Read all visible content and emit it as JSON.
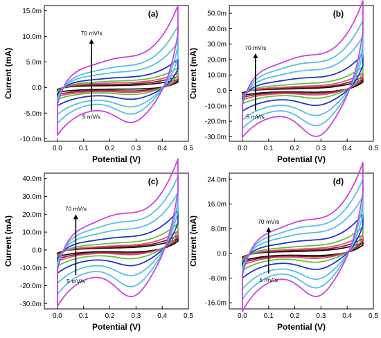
{
  "chart_data": [
    {
      "type": "line",
      "panel_label": "(a)",
      "xlabel": "Potential (V)",
      "ylabel": "Current (mA)",
      "xlim": [
        -0.05,
        0.5
      ],
      "ylim": [
        -10.5,
        16
      ],
      "xticks": [
        0.0,
        0.1,
        0.2,
        0.3,
        0.4,
        0.5
      ],
      "xtick_labels": [
        "0.0",
        "0.1",
        "0.2",
        "0.3",
        "0.4",
        "0.5"
      ],
      "yticks": [
        -10,
        -5,
        0,
        5,
        10,
        15
      ],
      "ytick_labels": [
        "-10.0m",
        "-5.0m",
        "0.0",
        "5.0m",
        "10.0m",
        "15.0m"
      ],
      "annotation_top": "70 mV/s",
      "annotation_bottom": "5 mV/s",
      "arrow_x": 0.13,
      "arrow_y": [
        -4.5,
        9.5
      ],
      "e_min": 0.0,
      "e_max": 0.46,
      "series": [
        {
          "color": "#111111",
          "cap_mid": 0.35,
          "ox_peak": 0.0,
          "red_peak": 0.0,
          "tail_high": 1.2,
          "tail_low": -0.6
        },
        {
          "color": "#8b2323",
          "cap_mid": 0.55,
          "ox_peak": 0.0,
          "red_peak": 0.2,
          "tail_high": 1.6,
          "tail_low": -0.9
        },
        {
          "color": "#e05080",
          "cap_mid": 0.75,
          "ox_peak": 0.1,
          "red_peak": 0.3,
          "tail_high": 2.0,
          "tail_low": -1.1
        },
        {
          "color": "#60c040",
          "cap_mid": 1.0,
          "ox_peak": 0.2,
          "red_peak": 0.5,
          "tail_high": 2.8,
          "tail_low": -1.4
        },
        {
          "color": "#2233cc",
          "cap_mid": 1.5,
          "ox_peak": 0.3,
          "red_peak": 1.0,
          "tail_high": 4.0,
          "tail_low": -2.2
        },
        {
          "color": "#55bfe8",
          "cap_mid": 2.3,
          "ox_peak": 0.5,
          "red_peak": 1.8,
          "tail_high": 6.5,
          "tail_low": -3.2
        },
        {
          "color": "#55bfe8",
          "cap_mid": 3.0,
          "ox_peak": 0.8,
          "red_peak": 2.6,
          "tail_high": 9.0,
          "tail_low": -4.3
        },
        {
          "color": "#cc44dd",
          "cap_mid": 4.2,
          "ox_peak": 1.2,
          "red_peak": 3.2,
          "tail_high": 11.8,
          "tail_low": -5.5
        }
      ]
    },
    {
      "type": "line",
      "panel_label": "(b)",
      "xlabel": "Potential (V)",
      "ylabel": "Current (mA)",
      "xlim": [
        -0.05,
        0.5
      ],
      "ylim": [
        -33,
        55
      ],
      "xticks": [
        0.0,
        0.1,
        0.2,
        0.3,
        0.4,
        0.5
      ],
      "xtick_labels": [
        "0.0",
        "0.1",
        "0.2",
        "0.3",
        "0.4",
        "0.5"
      ],
      "yticks": [
        -30,
        -20,
        -10,
        0,
        10,
        20,
        30,
        40,
        50
      ],
      "ytick_labels": [
        "-30.0m",
        "-20.0m",
        "-10.0m",
        "0.0",
        "10.0m",
        "20.0m",
        "30.0m",
        "40.0m",
        "50.0m"
      ],
      "annotation_top": "70 mV/s",
      "annotation_bottom": "5 mV/s",
      "arrow_x": 0.05,
      "arrow_y": [
        -13,
        24
      ],
      "e_min": 0.0,
      "e_max": 0.46,
      "series": [
        {
          "color": "#111111",
          "cap_mid": 0.8,
          "ox_peak": 0.2,
          "red_peak": 0.5,
          "tail_high": 6.0,
          "tail_low": -2.5
        },
        {
          "color": "#8b2323",
          "cap_mid": 1.2,
          "ox_peak": 0.4,
          "red_peak": 0.9,
          "tail_high": 7.5,
          "tail_low": -3.5
        },
        {
          "color": "#e05080",
          "cap_mid": 1.8,
          "ox_peak": 0.6,
          "red_peak": 1.4,
          "tail_high": 9.5,
          "tail_low": -4.5
        },
        {
          "color": "#60c040",
          "cap_mid": 3.0,
          "ox_peak": 1.0,
          "red_peak": 2.5,
          "tail_high": 12.5,
          "tail_low": -6.0
        },
        {
          "color": "#2233cc",
          "cap_mid": 5.5,
          "ox_peak": 2.0,
          "red_peak": 5.0,
          "tail_high": 18.0,
          "tail_low": -8.5
        },
        {
          "color": "#55bfe8",
          "cap_mid": 9.0,
          "ox_peak": 3.0,
          "red_peak": 8.5,
          "tail_high": 26.0,
          "tail_low": -11.0
        },
        {
          "color": "#55bfe8",
          "cap_mid": 12.5,
          "ox_peak": 4.0,
          "red_peak": 12.0,
          "tail_high": 33.0,
          "tail_low": -13.5
        },
        {
          "color": "#cc44dd",
          "cap_mid": 16.0,
          "ox_peak": 5.0,
          "red_peak": 16.0,
          "tail_high": 42.0,
          "tail_low": -16.0
        }
      ]
    },
    {
      "type": "line",
      "panel_label": "(c)",
      "xlabel": "Potential (V)",
      "ylabel": "Current (mA)",
      "xlim": [
        -0.05,
        0.5
      ],
      "ylim": [
        -33,
        43
      ],
      "xticks": [
        0.0,
        0.1,
        0.2,
        0.3,
        0.4,
        0.5
      ],
      "xtick_labels": [
        "0.0",
        "0.1",
        "0.2",
        "0.3",
        "0.4",
        "0.5"
      ],
      "yticks": [
        -30,
        -20,
        -10,
        0,
        10,
        20,
        30,
        40
      ],
      "ytick_labels": [
        "-30.0m",
        "-20.0m",
        "-10.0m",
        "0.0",
        "10.0m",
        "20.0m",
        "30.0m",
        "40.0m"
      ],
      "annotation_top": "70 mV/s",
      "annotation_bottom": "5 mV/s",
      "arrow_x": 0.07,
      "arrow_y": [
        -14,
        20
      ],
      "e_min": 0.0,
      "e_max": 0.46,
      "series": [
        {
          "color": "#111111",
          "cap_mid": 0.8,
          "ox_peak": 0.2,
          "red_peak": 0.5,
          "tail_high": 5.5,
          "tail_low": -3.0
        },
        {
          "color": "#8b2323",
          "cap_mid": 1.2,
          "ox_peak": 0.3,
          "red_peak": 0.8,
          "tail_high": 7.0,
          "tail_low": -4.0
        },
        {
          "color": "#e05080",
          "cap_mid": 1.6,
          "ox_peak": 0.5,
          "red_peak": 1.3,
          "tail_high": 9.0,
          "tail_low": -5.0
        },
        {
          "color": "#60c040",
          "cap_mid": 2.8,
          "ox_peak": 0.8,
          "red_peak": 2.5,
          "tail_high": 12.0,
          "tail_low": -6.5
        },
        {
          "color": "#2233cc",
          "cap_mid": 5.0,
          "ox_peak": 1.5,
          "red_peak": 4.5,
          "tail_high": 17.0,
          "tail_low": -8.5
        },
        {
          "color": "#55bfe8",
          "cap_mid": 8.0,
          "ox_peak": 2.5,
          "red_peak": 7.5,
          "tail_high": 24.0,
          "tail_low": -11.5
        },
        {
          "color": "#55bfe8",
          "cap_mid": 11.0,
          "ox_peak": 3.5,
          "red_peak": 11.0,
          "tail_high": 30.0,
          "tail_low": -15.0
        },
        {
          "color": "#cc44dd",
          "cap_mid": 14.0,
          "ox_peak": 5.0,
          "red_peak": 14.0,
          "tail_high": 37.0,
          "tail_low": -19.0
        }
      ]
    },
    {
      "type": "line",
      "panel_label": "(d)",
      "xlabel": "Potential (V)",
      "ylabel": "Current (mA)",
      "xlim": [
        -0.05,
        0.5
      ],
      "ylim": [
        -18,
        26
      ],
      "xticks": [
        0.0,
        0.1,
        0.2,
        0.3,
        0.4,
        0.5
      ],
      "xtick_labels": [
        "0.0",
        "0.1",
        "0.2",
        "0.3",
        "0.4",
        "0.5"
      ],
      "yticks": [
        -16,
        -8,
        0,
        8,
        16,
        24
      ],
      "ytick_labels": [
        "-16.0m",
        "-8.0m",
        "0.0",
        "8.0m",
        "16.0m",
        "24.0m"
      ],
      "annotation_top": "70 mV/s",
      "annotation_bottom": "5 mV/s",
      "arrow_x": 0.1,
      "arrow_y": [
        -6.5,
        8.5
      ],
      "e_min": 0.0,
      "e_max": 0.46,
      "series": [
        {
          "color": "#111111",
          "cap_mid": 0.5,
          "ox_peak": 0.1,
          "red_peak": 0.3,
          "tail_high": 3.0,
          "tail_low": -2.0
        },
        {
          "color": "#8b2323",
          "cap_mid": 0.7,
          "ox_peak": 0.2,
          "red_peak": 0.5,
          "tail_high": 4.0,
          "tail_low": -2.5
        },
        {
          "color": "#e05080",
          "cap_mid": 1.0,
          "ox_peak": 0.3,
          "red_peak": 0.8,
          "tail_high": 5.0,
          "tail_low": -3.0
        },
        {
          "color": "#60c040",
          "cap_mid": 1.6,
          "ox_peak": 0.5,
          "red_peak": 1.5,
          "tail_high": 7.0,
          "tail_low": -4.0
        },
        {
          "color": "#2233cc",
          "cap_mid": 2.8,
          "ox_peak": 1.0,
          "red_peak": 2.8,
          "tail_high": 10.0,
          "tail_low": -5.5
        },
        {
          "color": "#55bfe8",
          "cap_mid": 4.5,
          "ox_peak": 1.5,
          "red_peak": 4.5,
          "tail_high": 14.0,
          "tail_low": -7.5
        },
        {
          "color": "#55bfe8",
          "cap_mid": 6.0,
          "ox_peak": 2.0,
          "red_peak": 6.0,
          "tail_high": 18.0,
          "tail_low": -9.5
        },
        {
          "color": "#cc44dd",
          "cap_mid": 7.5,
          "ox_peak": 2.5,
          "red_peak": 7.5,
          "tail_high": 22.0,
          "tail_low": -12.0
        }
      ]
    }
  ]
}
